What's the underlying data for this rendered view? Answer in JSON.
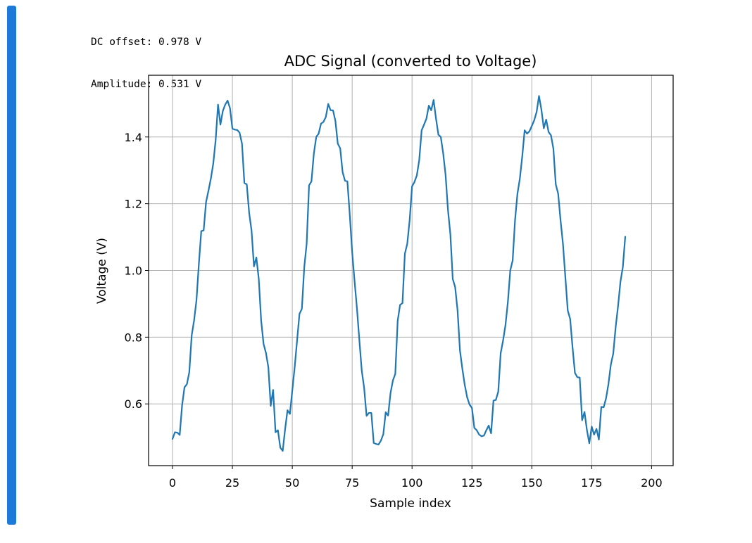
{
  "stdout": {
    "dc_offset_text": "DC offset: 0.978 V",
    "amplitude_text": "Amplitude: 0.531 V"
  },
  "colors": {
    "cell_bar": "#1e7ad8",
    "line": "#1f77b4",
    "grid": "#b0b0b0",
    "axes": "#000000"
  },
  "chart_data": {
    "type": "line",
    "title": "ADC Signal (converted to Voltage)",
    "xlabel": "Sample index",
    "ylabel": "Voltage (V)",
    "xlim": [
      -10,
      209
    ],
    "ylim": [
      0.415,
      1.585
    ],
    "xticks": [
      0,
      25,
      50,
      75,
      100,
      125,
      150,
      175,
      200
    ],
    "yticks": [
      0.6,
      0.8,
      1.0,
      1.2,
      1.4
    ],
    "ytick_labels": [
      "0.6",
      "0.8",
      "1.0",
      "1.2",
      "1.4"
    ],
    "grid": true,
    "series": [
      {
        "x_start": 0,
        "x_step": 1,
        "values": [
          0.495,
          0.515,
          0.514,
          0.507,
          0.596,
          0.65,
          0.659,
          0.695,
          0.805,
          0.85,
          0.911,
          1.02,
          1.118,
          1.12,
          1.205,
          1.239,
          1.275,
          1.32,
          1.39,
          1.497,
          1.437,
          1.478,
          1.497,
          1.509,
          1.486,
          1.425,
          1.422,
          1.421,
          1.413,
          1.38,
          1.262,
          1.258,
          1.172,
          1.119,
          1.012,
          1.039,
          0.975,
          0.85,
          0.78,
          0.753,
          0.71,
          0.594,
          0.642,
          0.515,
          0.521,
          0.469,
          0.459,
          0.524,
          0.581,
          0.57,
          0.64,
          0.71,
          0.79,
          0.87,
          0.885,
          1.01,
          1.08,
          1.255,
          1.267,
          1.35,
          1.4,
          1.41,
          1.44,
          1.445,
          1.46,
          1.499,
          1.48,
          1.48,
          1.448,
          1.38,
          1.366,
          1.295,
          1.269,
          1.267,
          1.167,
          1.055,
          0.968,
          0.886,
          0.791,
          0.7,
          0.648,
          0.564,
          0.573,
          0.573,
          0.483,
          0.48,
          0.478,
          0.49,
          0.509,
          0.575,
          0.565,
          0.632,
          0.67,
          0.69,
          0.849,
          0.897,
          0.902,
          1.05,
          1.08,
          1.151,
          1.252,
          1.265,
          1.285,
          1.331,
          1.42,
          1.437,
          1.455,
          1.494,
          1.48,
          1.511,
          1.455,
          1.407,
          1.4,
          1.351,
          1.286,
          1.181,
          1.108,
          0.974,
          0.95,
          0.88,
          0.76,
          0.705,
          0.657,
          0.62,
          0.598,
          0.588,
          0.528,
          0.521,
          0.508,
          0.503,
          0.505,
          0.521,
          0.535,
          0.512,
          0.61,
          0.612,
          0.637,
          0.752,
          0.79,
          0.836,
          0.905,
          1.0,
          1.03,
          1.151,
          1.23,
          1.275,
          1.341,
          1.42,
          1.41,
          1.417,
          1.433,
          1.45,
          1.475,
          1.523,
          1.482,
          1.426,
          1.452,
          1.415,
          1.405,
          1.365,
          1.258,
          1.23,
          1.15,
          1.08,
          0.98,
          0.88,
          0.855,
          0.77,
          0.693,
          0.68,
          0.679,
          0.551,
          0.576,
          0.522,
          0.482,
          0.532,
          0.508,
          0.525,
          0.493,
          0.591,
          0.59,
          0.617,
          0.66,
          0.718,
          0.751,
          0.83,
          0.893,
          0.966,
          1.01,
          1.101
        ]
      }
    ]
  }
}
